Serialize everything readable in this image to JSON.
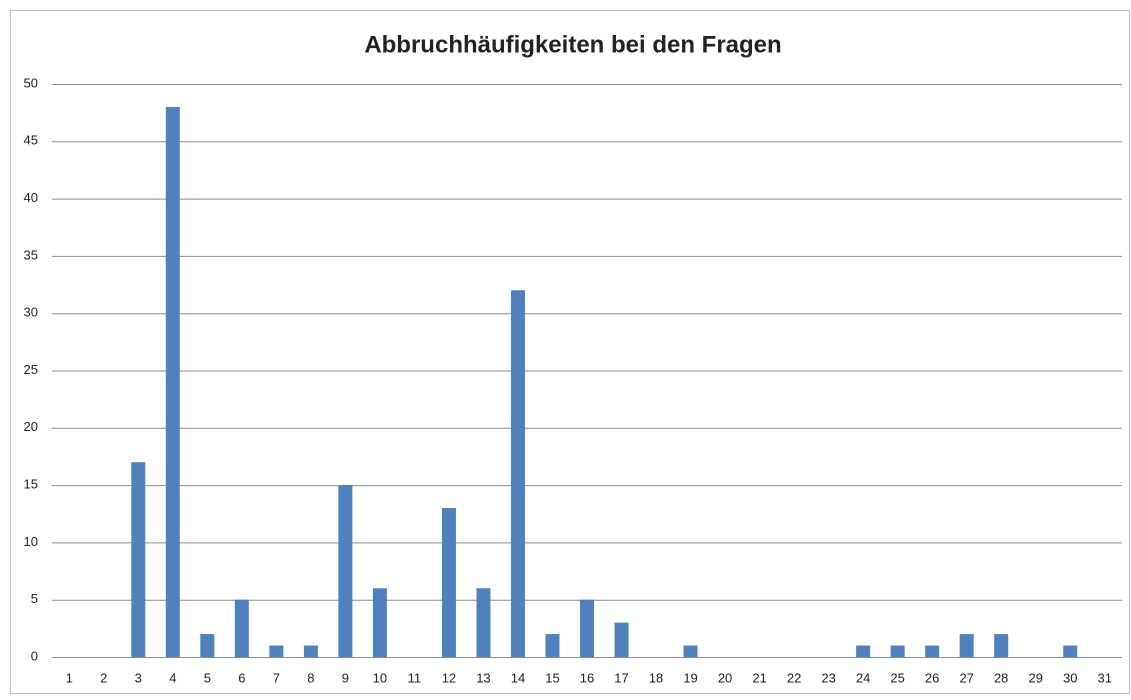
{
  "chart_data": {
    "type": "bar",
    "title": "Abbruchhäufigkeiten bei den Fragen",
    "categories": [
      "1",
      "2",
      "3",
      "4",
      "5",
      "6",
      "7",
      "8",
      "9",
      "10",
      "11",
      "12",
      "13",
      "14",
      "15",
      "16",
      "17",
      "18",
      "19",
      "20",
      "21",
      "22",
      "23",
      "24",
      "25",
      "26",
      "27",
      "28",
      "29",
      "30",
      "31"
    ],
    "values": [
      0,
      0,
      17,
      48,
      2,
      5,
      1,
      1,
      15,
      6,
      0,
      13,
      6,
      32,
      2,
      5,
      3,
      0,
      1,
      0,
      0,
      0,
      0,
      1,
      1,
      1,
      2,
      2,
      0,
      1,
      0
    ],
    "color": "#4f81bd",
    "ylim": [
      0,
      50
    ],
    "yticks": [
      0,
      5,
      10,
      15,
      20,
      25,
      30,
      35,
      40,
      45,
      50
    ],
    "grid": true
  }
}
